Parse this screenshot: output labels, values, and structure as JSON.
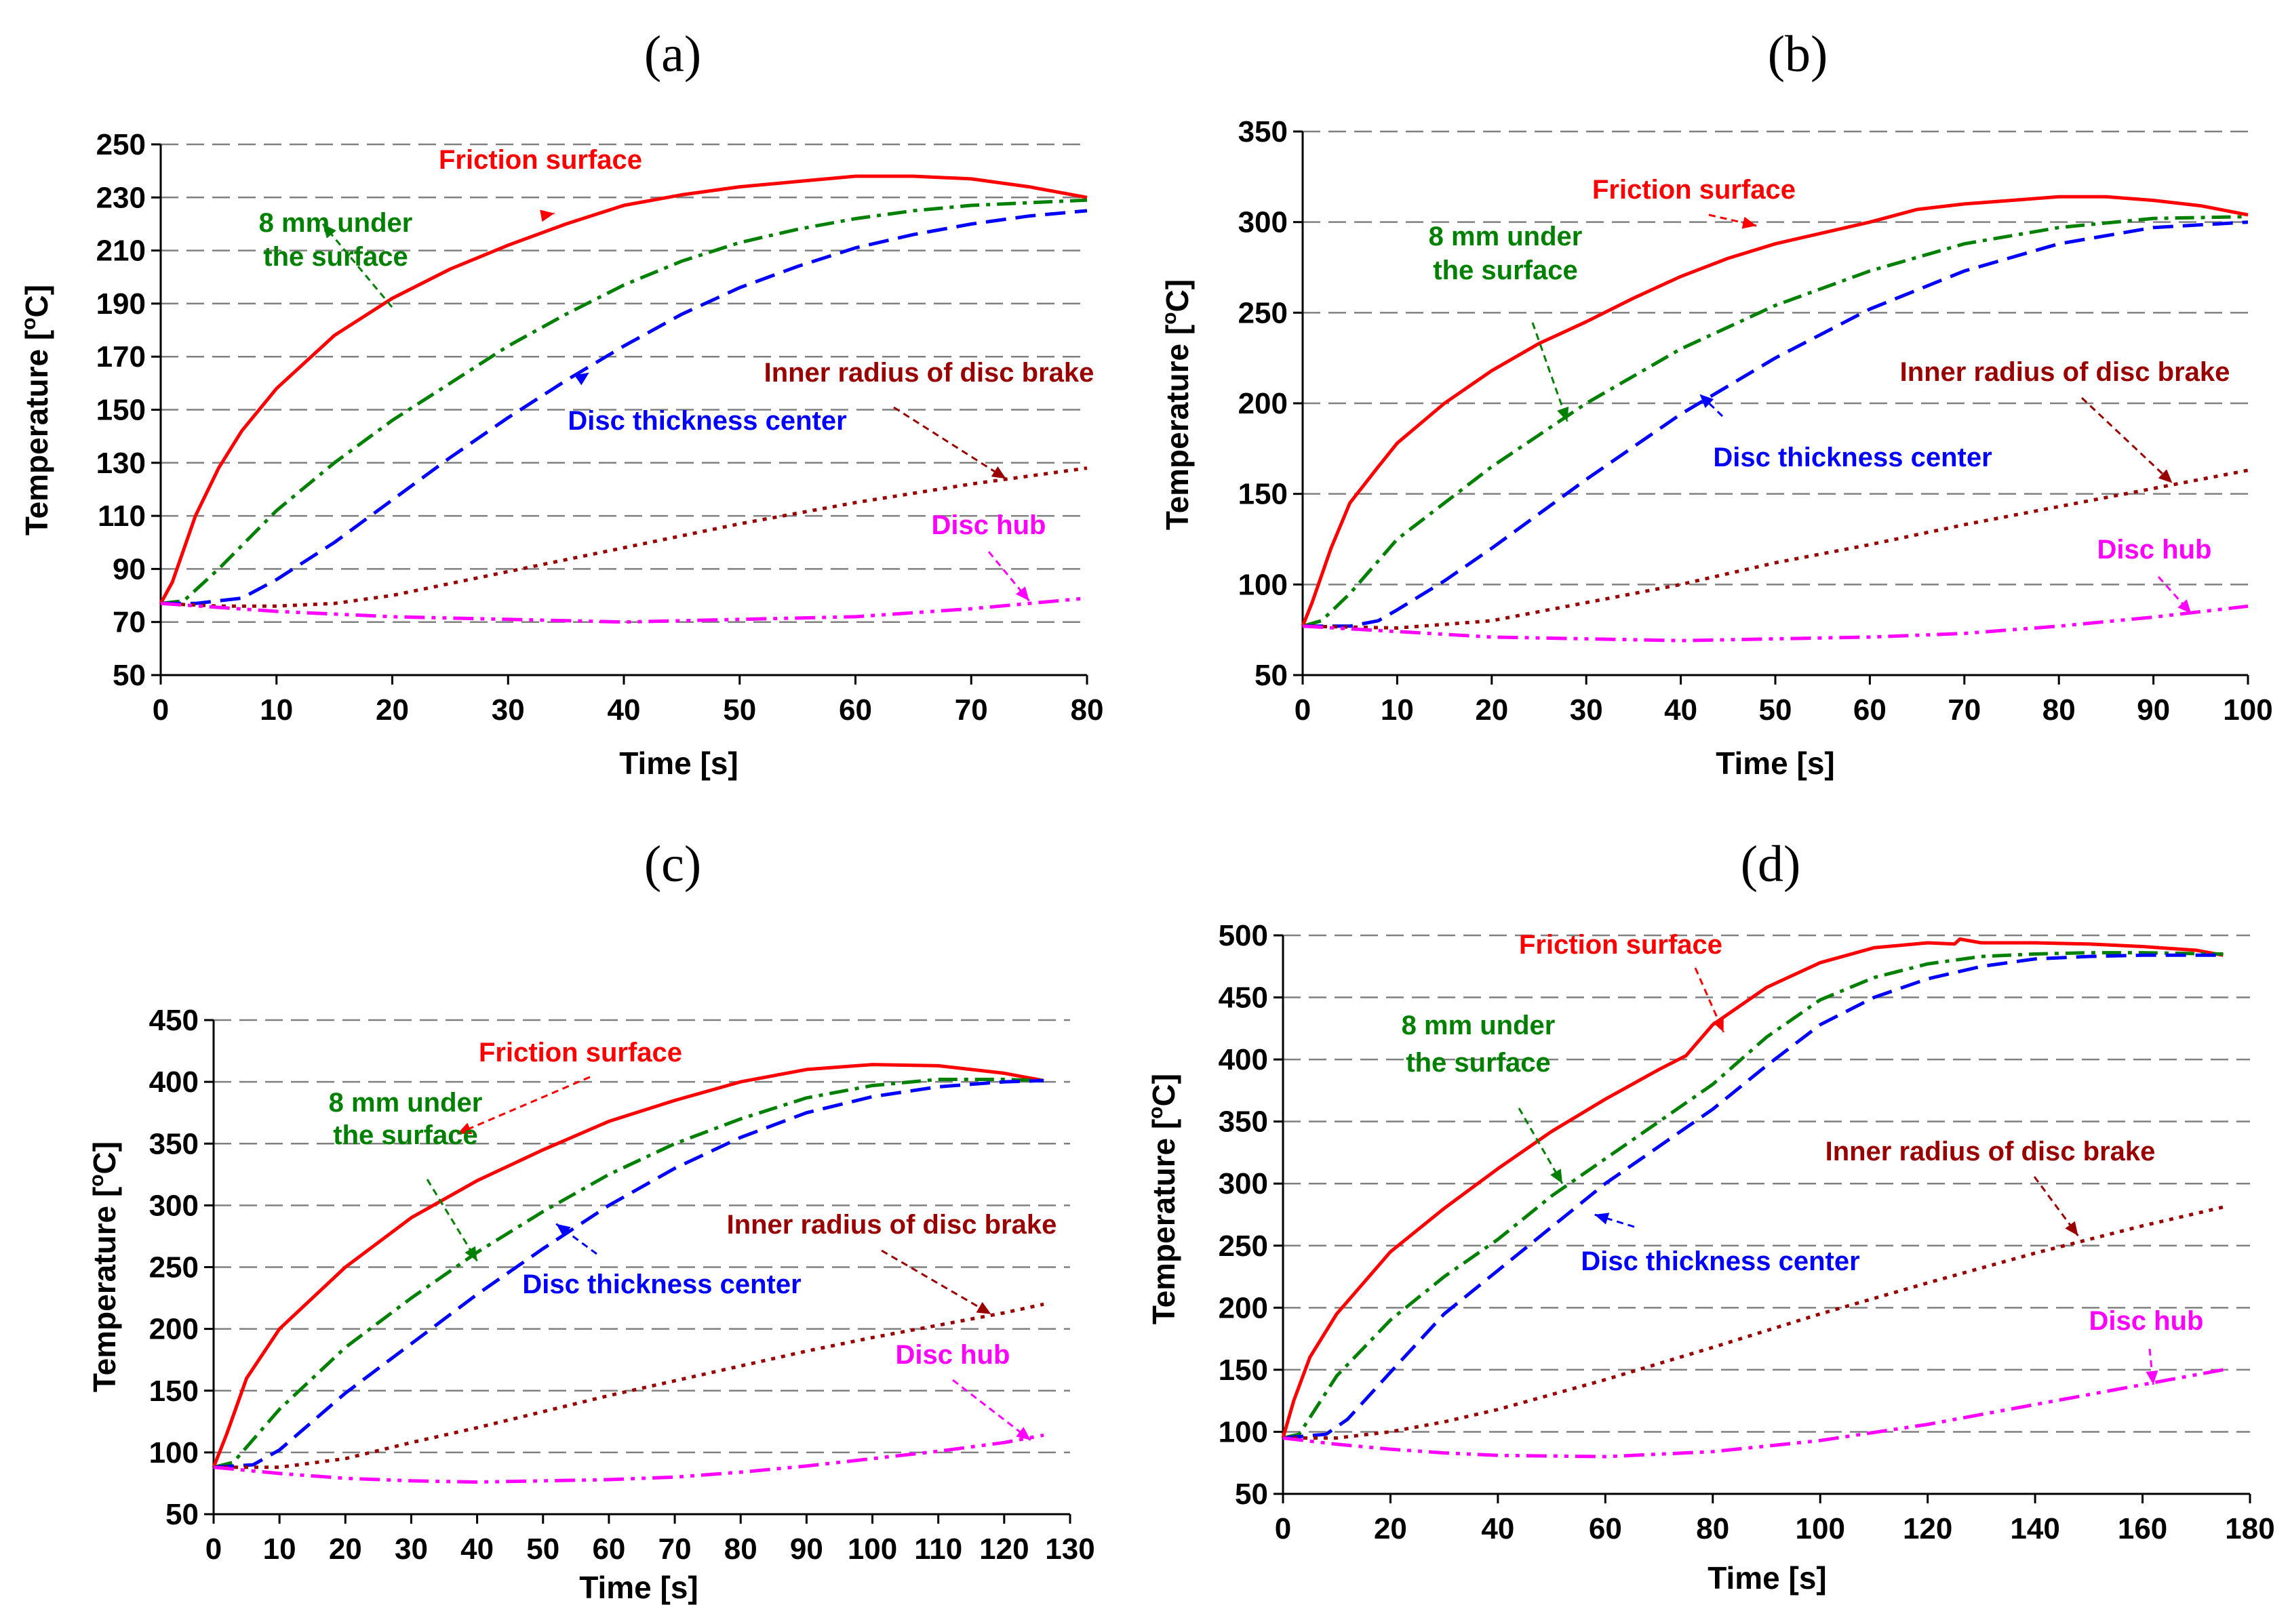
{
  "chart_data": [
    {
      "type": "line",
      "panel": "(a)",
      "xlabel": "Time [s]",
      "ylabel": "Temperature [oC]",
      "ylabel_main": "Temperature [",
      "ylabel_sup": "o",
      "ylabel_tail": "C]",
      "xlim": [
        0,
        80
      ],
      "ylim": [
        50,
        250
      ],
      "xticks": [
        0,
        10,
        20,
        30,
        40,
        50,
        60,
        70,
        80
      ],
      "yticks": [
        50,
        70,
        90,
        110,
        130,
        150,
        170,
        190,
        210,
        230,
        250
      ],
      "grid": "dashed horizontal",
      "series": [
        {
          "name": "Friction surface",
          "color": "#ff0000",
          "style": "solid",
          "x": [
            0,
            1,
            3,
            5,
            7,
            10,
            15,
            20,
            25,
            30,
            35,
            40,
            45,
            50,
            55,
            60,
            65,
            70,
            75,
            80
          ],
          "y": [
            77,
            85,
            110,
            128,
            142,
            158,
            178,
            192,
            203,
            212,
            220,
            227,
            231,
            234,
            236,
            238,
            238,
            237,
            234,
            230
          ]
        },
        {
          "name": "8 mm under the surface",
          "lines": [
            "8 mm under",
            "the surface"
          ],
          "color": "#008000",
          "style": "dashdot",
          "x": [
            0,
            2,
            5,
            10,
            15,
            20,
            25,
            30,
            35,
            40,
            45,
            50,
            55,
            60,
            65,
            70,
            75,
            80
          ],
          "y": [
            77,
            78,
            90,
            112,
            130,
            146,
            160,
            174,
            186,
            197,
            206,
            213,
            218,
            222,
            225,
            227,
            228,
            229
          ]
        },
        {
          "name": "Disc thickness center",
          "color": "#0000ff",
          "style": "dashed",
          "x": [
            0,
            3,
            7,
            10,
            15,
            20,
            25,
            30,
            35,
            40,
            45,
            50,
            55,
            60,
            65,
            70,
            75,
            80
          ],
          "y": [
            77,
            77,
            79,
            86,
            100,
            116,
            132,
            147,
            161,
            174,
            186,
            196,
            204,
            211,
            216,
            220,
            223,
            225
          ]
        },
        {
          "name": "Inner radius of disc brake",
          "color": "#990000",
          "style": "dotted",
          "x": [
            0,
            5,
            10,
            15,
            20,
            30,
            40,
            50,
            60,
            70,
            80
          ],
          "y": [
            77,
            76,
            76,
            77,
            80,
            89,
            98,
            107,
            115,
            122,
            128
          ]
        },
        {
          "name": "Disc hub",
          "color": "#ff00ff",
          "style": "dashdotdot",
          "x": [
            0,
            10,
            20,
            30,
            40,
            50,
            60,
            70,
            80
          ],
          "y": [
            77,
            74,
            72,
            71,
            70,
            71,
            72,
            75,
            79
          ]
        }
      ]
    },
    {
      "type": "line",
      "panel": "(b)",
      "xlabel": "Time [s]",
      "ylabel": "Temperature [oC]",
      "ylabel_main": "Temperature [",
      "ylabel_sup": "o",
      "ylabel_tail": "C]",
      "xlim": [
        0,
        100
      ],
      "ylim": [
        50,
        350
      ],
      "xticks": [
        0,
        10,
        20,
        30,
        40,
        50,
        60,
        70,
        80,
        90,
        100
      ],
      "yticks": [
        50,
        100,
        150,
        200,
        250,
        300,
        350
      ],
      "grid": "dashed horizontal",
      "series": [
        {
          "name": "Friction surface",
          "color": "#ff0000",
          "style": "solid",
          "x": [
            0,
            1,
            3,
            5,
            8,
            10,
            15,
            20,
            25,
            30,
            35,
            40,
            45,
            50,
            55,
            60,
            65,
            70,
            75,
            80,
            85,
            90,
            95,
            100
          ],
          "y": [
            77,
            90,
            120,
            145,
            165,
            178,
            200,
            218,
            233,
            245,
            258,
            270,
            280,
            288,
            294,
            300,
            307,
            310,
            312,
            314,
            314,
            312,
            309,
            304
          ]
        },
        {
          "name": "8 mm under the surface",
          "lines": [
            "8 mm under",
            "the surface"
          ],
          "color": "#008000",
          "style": "dashdot",
          "x": [
            0,
            2,
            5,
            10,
            20,
            30,
            40,
            50,
            60,
            70,
            80,
            90,
            100
          ],
          "y": [
            77,
            80,
            95,
            125,
            165,
            200,
            230,
            254,
            273,
            288,
            297,
            302,
            303
          ]
        },
        {
          "name": "Disc thickness center",
          "color": "#0000ff",
          "style": "dashed",
          "x": [
            0,
            5,
            8,
            10,
            15,
            20,
            30,
            40,
            50,
            60,
            70,
            80,
            90,
            100
          ],
          "y": [
            77,
            77,
            80,
            86,
            102,
            120,
            158,
            194,
            225,
            252,
            273,
            288,
            297,
            300
          ]
        },
        {
          "name": "Inner radius of disc brake",
          "color": "#990000",
          "style": "dotted",
          "x": [
            0,
            10,
            20,
            30,
            40,
            50,
            60,
            70,
            80,
            90,
            100
          ],
          "y": [
            77,
            76,
            80,
            90,
            100,
            112,
            122,
            133,
            143,
            153,
            163
          ]
        },
        {
          "name": "Disc hub",
          "color": "#ff00ff",
          "style": "dashdotdot",
          "x": [
            0,
            10,
            20,
            30,
            40,
            50,
            60,
            70,
            80,
            90,
            100
          ],
          "y": [
            77,
            74,
            71,
            70,
            69,
            70,
            71,
            73,
            77,
            82,
            88
          ]
        }
      ]
    },
    {
      "type": "line",
      "panel": "(c)",
      "xlabel": "Time [s]",
      "ylabel": "Temperature [oC]",
      "ylabel_main": "Temperature [",
      "ylabel_sup": "o",
      "ylabel_tail": "C]",
      "xlim": [
        0,
        130
      ],
      "ylim": [
        50,
        450
      ],
      "xticks": [
        0,
        10,
        20,
        30,
        40,
        50,
        60,
        70,
        80,
        90,
        100,
        110,
        120,
        130
      ],
      "yticks": [
        50,
        100,
        150,
        200,
        250,
        300,
        350,
        400,
        450
      ],
      "grid": "dashed horizontal",
      "series": [
        {
          "name": "Friction surface",
          "color": "#ff0000",
          "style": "solid",
          "x": [
            0,
            2,
            5,
            10,
            15,
            20,
            30,
            40,
            50,
            60,
            70,
            80,
            90,
            100,
            110,
            120,
            126
          ],
          "y": [
            88,
            115,
            160,
            200,
            225,
            250,
            290,
            320,
            345,
            368,
            385,
            400,
            410,
            414,
            413,
            407,
            401
          ]
        },
        {
          "name": "8 mm under the surface",
          "lines": [
            "8 mm under",
            "the surface"
          ],
          "color": "#008000",
          "style": "dashdot",
          "x": [
            0,
            3,
            10,
            20,
            30,
            40,
            50,
            60,
            70,
            80,
            90,
            100,
            110,
            120,
            126
          ],
          "y": [
            88,
            92,
            135,
            185,
            225,
            262,
            295,
            325,
            350,
            370,
            387,
            397,
            402,
            402,
            401
          ]
        },
        {
          "name": "Disc thickness center",
          "color": "#0000ff",
          "style": "dashed",
          "x": [
            0,
            6,
            10,
            20,
            30,
            40,
            50,
            60,
            70,
            80,
            90,
            100,
            110,
            120,
            126
          ],
          "y": [
            88,
            90,
            102,
            148,
            188,
            228,
            265,
            300,
            330,
            355,
            375,
            388,
            396,
            400,
            401
          ]
        },
        {
          "name": "Inner radius of disc brake",
          "color": "#990000",
          "style": "dotted",
          "x": [
            0,
            10,
            20,
            30,
            40,
            50,
            60,
            70,
            80,
            90,
            100,
            110,
            120,
            126
          ],
          "y": [
            88,
            88,
            95,
            108,
            120,
            133,
            146,
            158,
            170,
            182,
            193,
            203,
            213,
            220
          ]
        },
        {
          "name": "Disc hub",
          "color": "#ff00ff",
          "style": "dashdotdot",
          "x": [
            0,
            10,
            20,
            30,
            40,
            50,
            60,
            70,
            80,
            90,
            100,
            110,
            120,
            126
          ],
          "y": [
            88,
            83,
            79,
            77,
            76,
            77,
            78,
            80,
            84,
            89,
            95,
            101,
            108,
            114
          ]
        }
      ]
    },
    {
      "type": "line",
      "panel": "(d)",
      "xlabel": "Time [s]",
      "ylabel": "Temperature [oC]",
      "ylabel_main": "Temperature [",
      "ylabel_sup": "o",
      "ylabel_tail": "C]",
      "xlim": [
        0,
        180
      ],
      "ylim": [
        50,
        500
      ],
      "xticks": [
        0,
        20,
        40,
        60,
        80,
        100,
        120,
        140,
        160,
        180
      ],
      "yticks": [
        50,
        100,
        150,
        200,
        250,
        300,
        350,
        400,
        450,
        500
      ],
      "grid": "dashed horizontal",
      "series": [
        {
          "name": "Friction surface",
          "color": "#ff0000",
          "style": "solid",
          "x": [
            0,
            2,
            5,
            10,
            20,
            30,
            40,
            50,
            60,
            70,
            75,
            80,
            90,
            100,
            110,
            120,
            125,
            126,
            130,
            140,
            150,
            160,
            170,
            175
          ],
          "y": [
            95,
            125,
            160,
            195,
            245,
            280,
            312,
            342,
            368,
            392,
            403,
            428,
            458,
            478,
            490,
            494,
            493,
            497,
            494,
            494,
            493,
            491,
            488,
            484
          ]
        },
        {
          "name": "8 mm under the surface",
          "lines": [
            "8 mm under",
            "the surface"
          ],
          "color": "#008000",
          "style": "dashdot",
          "x": [
            0,
            3,
            10,
            20,
            30,
            40,
            50,
            60,
            70,
            80,
            90,
            100,
            110,
            120,
            130,
            140,
            150,
            160,
            175
          ],
          "y": [
            95,
            98,
            145,
            190,
            225,
            255,
            290,
            320,
            350,
            380,
            418,
            448,
            466,
            477,
            483,
            485,
            486,
            486,
            485
          ]
        },
        {
          "name": "Disc thickness center",
          "color": "#0000ff",
          "style": "dashed",
          "x": [
            0,
            8,
            12,
            20,
            30,
            40,
            50,
            60,
            70,
            80,
            90,
            100,
            110,
            120,
            130,
            140,
            150,
            160,
            175
          ],
          "y": [
            95,
            98,
            110,
            148,
            195,
            230,
            265,
            300,
            330,
            360,
            395,
            428,
            450,
            465,
            475,
            481,
            483,
            484,
            484
          ]
        },
        {
          "name": "Inner radius of disc brake",
          "color": "#990000",
          "style": "dotted",
          "x": [
            0,
            10,
            20,
            30,
            40,
            60,
            80,
            100,
            120,
            140,
            160,
            175
          ],
          "y": [
            95,
            95,
            100,
            108,
            118,
            142,
            168,
            195,
            220,
            244,
            266,
            281
          ]
        },
        {
          "name": "Disc hub",
          "color": "#ff00ff",
          "style": "dashdotdot",
          "x": [
            0,
            10,
            20,
            30,
            40,
            60,
            80,
            100,
            120,
            140,
            160,
            175
          ],
          "y": [
            95,
            90,
            86,
            83,
            81,
            80,
            84,
            93,
            106,
            122,
            138,
            150
          ]
        }
      ]
    }
  ]
}
